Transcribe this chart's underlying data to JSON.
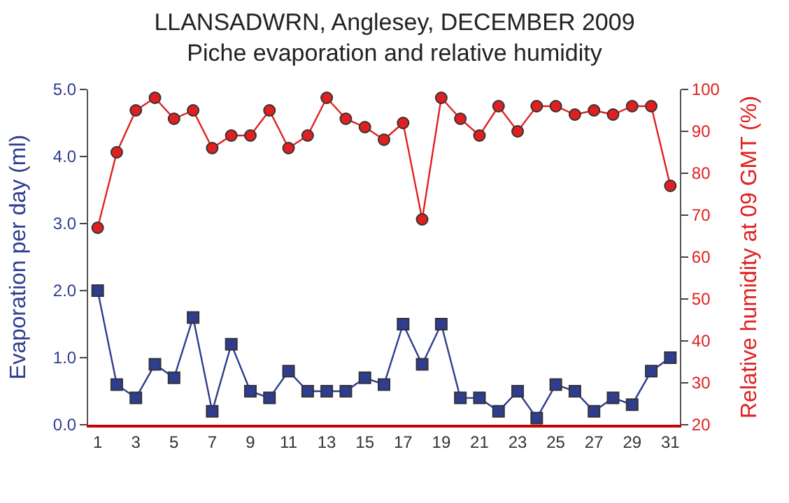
{
  "chart_data": {
    "type": "line",
    "title": "LLANSADWRN, Anglesey, DECEMBER 2009",
    "subtitle": "Piche evaporation and relative humidity",
    "xlabel": null,
    "ylabel": "Evaporation per day (ml)",
    "y2label": "Relative humidity at 09 GMT (%)",
    "x": [
      1,
      2,
      3,
      4,
      5,
      6,
      7,
      8,
      9,
      10,
      11,
      12,
      13,
      14,
      15,
      16,
      17,
      18,
      19,
      20,
      21,
      22,
      23,
      24,
      25,
      26,
      27,
      28,
      29,
      30,
      31
    ],
    "series": [
      {
        "color": "#2e3d8f",
        "marker": "square",
        "values": [
          2.0,
          0.6,
          0.4,
          0.9,
          0.7,
          1.6,
          0.2,
          1.2,
          0.5,
          0.4,
          0.8,
          0.5,
          0.5,
          0.5,
          0.7,
          0.6,
          1.5,
          0.9,
          1.5,
          0.4,
          0.4,
          0.2,
          0.5,
          0.1,
          0.6,
          0.5,
          0.2,
          0.4,
          0.3,
          0.8,
          1.0
        ]
      },
      {
        "color": "#e02020",
        "marker": "circle",
        "axis": "y2",
        "values": [
          67,
          85,
          95,
          98,
          93,
          95,
          86,
          89,
          89,
          95,
          86,
          89,
          98,
          93,
          91,
          88,
          92,
          69,
          98,
          93,
          89,
          96,
          90,
          96,
          96,
          94,
          95,
          94,
          96,
          96,
          77
        ]
      }
    ],
    "xlim": [
      0.5,
      31.5
    ],
    "xticks": [
      1,
      3,
      5,
      7,
      9,
      11,
      13,
      15,
      17,
      19,
      21,
      23,
      25,
      27,
      29,
      31
    ],
    "ylim": [
      0,
      5
    ],
    "yticks": [
      {
        "value": 0,
        "label": "0.0"
      },
      {
        "value": 1,
        "label": "1.0"
      },
      {
        "value": 2,
        "label": "2.0"
      },
      {
        "value": 3,
        "label": "3.0"
      },
      {
        "value": 4,
        "label": "4.0"
      },
      {
        "value": 5,
        "label": "5.0"
      }
    ],
    "y2lim": [
      20,
      100
    ],
    "y2ticks": [
      20,
      30,
      40,
      50,
      60,
      70,
      80,
      90,
      100
    ],
    "line_style": "solid"
  }
}
